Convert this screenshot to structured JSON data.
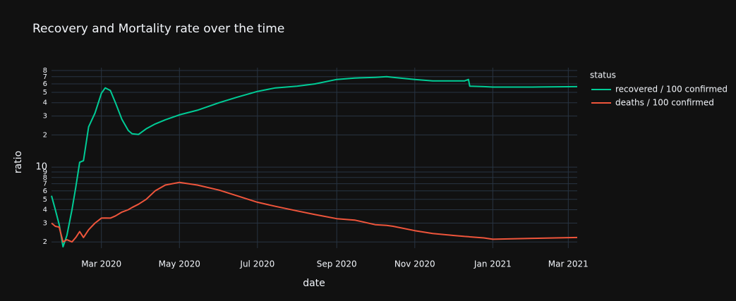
{
  "chart_data": {
    "type": "line",
    "title": "Recovery and Mortality rate over the time",
    "x_label": "date",
    "y_label": "ratio",
    "legend_title": "status",
    "legend_position": "right",
    "log_y": true,
    "grid": true,
    "x": [
      "2020-01-22",
      "2020-01-25",
      "2020-01-28",
      "2020-01-31",
      "2020-02-03",
      "2020-02-07",
      "2020-02-10",
      "2020-02-13",
      "2020-02-16",
      "2020-02-20",
      "2020-02-25",
      "2020-03-01",
      "2020-03-04",
      "2020-03-08",
      "2020-03-12",
      "2020-03-17",
      "2020-03-22",
      "2020-03-25",
      "2020-03-30",
      "2020-04-05",
      "2020-04-12",
      "2020-04-20",
      "2020-05-01",
      "2020-05-15",
      "2020-06-01",
      "2020-06-15",
      "2020-07-01",
      "2020-07-15",
      "2020-08-01",
      "2020-08-15",
      "2020-09-01",
      "2020-09-15",
      "2020-10-01",
      "2020-10-10",
      "2020-10-15",
      "2020-11-01",
      "2020-11-15",
      "2020-12-01",
      "2020-12-10",
      "2020-12-13",
      "2020-12-14",
      "2020-12-25",
      "2021-01-01",
      "2021-02-01",
      "2021-03-08"
    ],
    "series": [
      {
        "name": "recovered / 100 confirmed",
        "color": "#00cc96",
        "values": [
          5.4,
          4.0,
          2.9,
          1.8,
          2.3,
          4.0,
          6.5,
          11.1,
          11.5,
          23.8,
          32,
          49,
          55,
          52,
          40,
          28,
          22,
          20.5,
          20.2,
          22.8,
          25.3,
          27.7,
          30.8,
          34,
          40,
          45,
          51,
          55,
          57,
          60,
          66,
          68,
          69,
          70,
          69,
          66,
          64,
          64,
          64,
          66,
          57,
          56.5,
          56,
          56,
          56.5
        ]
      },
      {
        "name": "deaths / 100 confirmed",
        "color": "#ef553b",
        "values": [
          3.0,
          2.8,
          2.75,
          2.0,
          2.1,
          2.0,
          2.2,
          2.5,
          2.2,
          2.6,
          3.0,
          3.34,
          3.35,
          3.34,
          3.5,
          3.8,
          4.0,
          4.2,
          4.5,
          5.0,
          6.0,
          6.8,
          7.2,
          6.8,
          6.1,
          5.4,
          4.7,
          4.3,
          3.9,
          3.6,
          3.3,
          3.2,
          2.9,
          2.85,
          2.8,
          2.55,
          2.4,
          2.3,
          2.25,
          2.24,
          2.23,
          2.18,
          2.12,
          2.16,
          2.2
        ]
      }
    ],
    "xlim": [
      "2020-01-22",
      "2021-03-08"
    ],
    "xticks": [
      {
        "value": "2020-03-01",
        "label": "Mar 2020"
      },
      {
        "value": "2020-05-01",
        "label": "May 2020"
      },
      {
        "value": "2020-07-01",
        "label": "Jul 2020"
      },
      {
        "value": "2020-09-01",
        "label": "Sep 2020"
      },
      {
        "value": "2020-11-01",
        "label": "Nov 2020"
      },
      {
        "value": "2021-01-01",
        "label": "Jan 2021"
      },
      {
        "value": "2021-03-01",
        "label": "Mar 2021"
      }
    ],
    "ylim": [
      1.75,
      85
    ],
    "yticks": [
      2,
      3,
      4,
      5,
      6,
      7,
      8,
      9,
      10,
      {
        "value": 20,
        "label": "2"
      },
      {
        "value": 30,
        "label": "3"
      },
      {
        "value": 40,
        "label": "4"
      },
      {
        "value": 50,
        "label": "5"
      },
      {
        "value": 60,
        "label": "6"
      },
      {
        "value": 70,
        "label": "7"
      },
      {
        "value": 80,
        "label": "8"
      }
    ]
  }
}
